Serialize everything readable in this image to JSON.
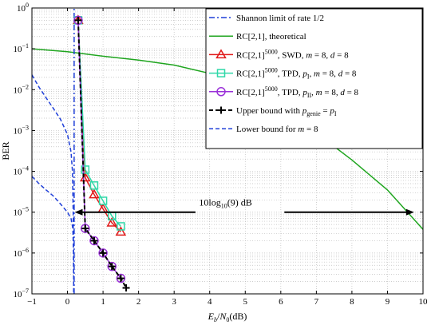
{
  "chart_data": {
    "type": "line",
    "xlabel": "E_b/N_0(dB)",
    "ylabel": "BER",
    "xlim": [
      -1,
      10
    ],
    "ylim_log10": [
      -7,
      0
    ],
    "y_scale": "log",
    "grid": true,
    "legend_placement": "top-right",
    "x_ticks": [
      "−1",
      "0",
      "1",
      "2",
      "3",
      "4",
      "5",
      "6",
      "7",
      "8",
      "9",
      "10"
    ],
    "y_ticks": [
      {
        "base": "10",
        "exp": "0"
      },
      {
        "base": "10",
        "exp": "−1"
      },
      {
        "base": "10",
        "exp": "−2"
      },
      {
        "base": "10",
        "exp": "−3"
      },
      {
        "base": "10",
        "exp": "−4"
      },
      {
        "base": "10",
        "exp": "−5"
      },
      {
        "base": "10",
        "exp": "−6"
      },
      {
        "base": "10",
        "exp": "−7"
      }
    ],
    "annotation": {
      "text_pre": "10log",
      "text_sub": "10",
      "text_post": "(9) dB",
      "x_from": 0.2,
      "x_to": 9.75,
      "y": 1e-05
    },
    "series": [
      {
        "name_segments": [
          {
            "t": "Shannon limit of rate 1/2"
          }
        ],
        "color": "#1f3fd8",
        "dash": "7,3,2,3",
        "width": 1.5,
        "marker": "none",
        "points": [
          [
            0.187,
            1e-07
          ],
          [
            0.187,
            0.0001
          ],
          [
            0.187,
            0.001
          ],
          [
            0.187,
            0.01
          ],
          [
            0.187,
            0.1
          ],
          [
            0.187,
            1
          ]
        ]
      },
      {
        "name_segments": [
          {
            "t": "RC[2,1], theoretical"
          }
        ],
        "color": "#1fa51f",
        "dash": "",
        "width": 1.5,
        "marker": "none",
        "points": [
          [
            -1,
            0.1
          ],
          [
            0,
            0.085
          ],
          [
            1,
            0.066
          ],
          [
            2,
            0.053
          ],
          [
            3,
            0.04
          ],
          [
            4,
            0.025
          ],
          [
            5,
            0.0129
          ],
          [
            6,
            0.00437
          ],
          [
            7,
            0.00087
          ],
          [
            8,
            0.00019
          ],
          [
            9,
            3.5e-05
          ],
          [
            10,
            3.8e-06
          ]
        ]
      },
      {
        "name_segments": [
          {
            "t": "RC[2,1]"
          },
          {
            "t": "5000",
            "sup": true
          },
          {
            "t": ", SWD,  "
          },
          {
            "t": "m",
            "it": true
          },
          {
            "t": " = 8,  "
          },
          {
            "t": "d",
            "it": true
          },
          {
            "t": " = 8"
          }
        ],
        "color": "#e01818",
        "dash": "",
        "width": 1.5,
        "marker": "triangle",
        "points": [
          [
            0.3,
            0.5
          ],
          [
            0.5,
            7e-05
          ],
          [
            0.75,
            2.7e-05
          ],
          [
            1.0,
            1.2e-05
          ],
          [
            1.25,
            5.5e-06
          ],
          [
            1.5,
            3.3e-06
          ]
        ]
      },
      {
        "name_segments": [
          {
            "t": "RC[2,1]"
          },
          {
            "t": "5000",
            "sup": true
          },
          {
            "t": ", TPD,  "
          },
          {
            "t": "p",
            "it": true
          },
          {
            "t": "I",
            "sub": true
          },
          {
            "t": ",  "
          },
          {
            "t": "m",
            "it": true
          },
          {
            "t": " = 8,  "
          },
          {
            "t": "d",
            "it": true
          },
          {
            "t": " = 8"
          }
        ],
        "color": "#2fd8a8",
        "dash": "",
        "width": 1.5,
        "marker": "square",
        "points": [
          [
            0.3,
            0.5
          ],
          [
            0.5,
            0.00011
          ],
          [
            0.75,
            4.5e-05
          ],
          [
            1.0,
            1.9e-05
          ],
          [
            1.25,
            8e-06
          ],
          [
            1.5,
            4.5e-06
          ]
        ]
      },
      {
        "name_segments": [
          {
            "t": "RC[2,1]"
          },
          {
            "t": "5000",
            "sup": true
          },
          {
            "t": ", TPD,  "
          },
          {
            "t": "p",
            "it": true
          },
          {
            "t": "II",
            "sub": true
          },
          {
            "t": ",  "
          },
          {
            "t": "m",
            "it": true
          },
          {
            "t": " = 8,  "
          },
          {
            "t": "d",
            "it": true
          },
          {
            "t": " = 8"
          }
        ],
        "color": "#9a30d8",
        "dash": "",
        "width": 1.5,
        "marker": "circle",
        "points": [
          [
            0.3,
            0.5
          ],
          [
            0.5,
            4e-06
          ],
          [
            0.75,
            2e-06
          ],
          [
            1.0,
            1e-06
          ],
          [
            1.25,
            4.7e-07
          ],
          [
            1.5,
            2.4e-07
          ]
        ]
      },
      {
        "name_segments": [
          {
            "t": "Upper bound with  "
          },
          {
            "t": "p",
            "it": true
          },
          {
            "t": "genie",
            "sub": true
          },
          {
            "t": " = "
          },
          {
            "t": "p",
            "it": true
          },
          {
            "t": "I",
            "sub": true
          }
        ],
        "color": "#000000",
        "dash": "5,3",
        "width": 2,
        "marker": "plus",
        "points": [
          [
            0.3,
            0.5
          ],
          [
            0.5,
            4e-06
          ],
          [
            0.75,
            2e-06
          ],
          [
            1.0,
            1e-06
          ],
          [
            1.25,
            4.7e-07
          ],
          [
            1.5,
            2.4e-07
          ],
          [
            1.65,
            1.4e-07
          ]
        ]
      },
      {
        "name_segments": [
          {
            "t": "Lower bound for  "
          },
          {
            "t": "m",
            "it": true
          },
          {
            "t": " = 8"
          }
        ],
        "color": "#1f3fd8",
        "dash": "5,3",
        "width": 1.5,
        "marker": "none",
        "points_upper": [
          [
            -1,
            0.023
          ],
          [
            -0.8,
            0.0115
          ],
          [
            -0.6,
            0.0063
          ],
          [
            -0.4,
            0.0035
          ],
          [
            -0.2,
            0.0019
          ],
          [
            0,
            0.0008
          ],
          [
            0.1,
            0.0003
          ],
          [
            0.14,
            0.0001
          ],
          [
            0.16,
            1e-05
          ],
          [
            0.17,
            1e-06
          ],
          [
            0.175,
            1e-07
          ]
        ],
        "points_lower": [
          [
            -1,
            7.5e-05
          ],
          [
            -0.8,
            5e-05
          ],
          [
            -0.6,
            3.5e-05
          ],
          [
            -0.4,
            2.5e-05
          ],
          [
            -0.2,
            1.6e-05
          ],
          [
            0,
            1e-05
          ],
          [
            0.1,
            7e-06
          ],
          [
            0.15,
            4e-06
          ],
          [
            0.17,
            1e-06
          ],
          [
            0.175,
            1e-07
          ]
        ]
      }
    ]
  }
}
